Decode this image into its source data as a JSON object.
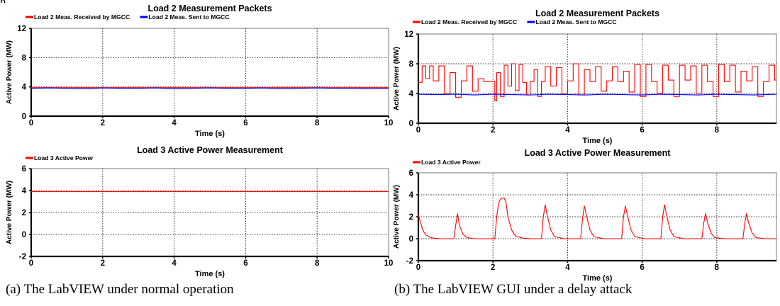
{
  "captions": {
    "a": "(a) The LabVIEW under normal operation",
    "b": "(b) The LabVIEW GUI under a delay attack"
  },
  "colors": {
    "received": "#ff0000",
    "sent": "#0000ff",
    "grid": "#444444"
  },
  "chart_data": [
    {
      "id": "a1",
      "type": "line",
      "title": "Load 2 Measurement Packets",
      "xlabel": "Time (s)",
      "ylabel": "Active Power (MW)",
      "xlim": [
        0,
        10
      ],
      "ylim": [
        0,
        12
      ],
      "xticks": [
        0,
        2,
        4,
        6,
        8,
        10
      ],
      "yticks": [
        0,
        4,
        8,
        12
      ],
      "grid": true,
      "legend": "top-left",
      "series": [
        {
          "name": "Load 2 Meas. Received by MGCC",
          "color": "#ff0000",
          "x": [
            0,
            10
          ],
          "y": [
            3.9,
            3.9
          ]
        },
        {
          "name": "Load 2 Meas. Sent to MGCC",
          "color": "#0000ff",
          "x": [
            0,
            0.5,
            1,
            1.5,
            2,
            2.5,
            3,
            3.5,
            4,
            4.5,
            5,
            5.5,
            6,
            6.5,
            7,
            7.5,
            8,
            8.5,
            9,
            9.5,
            10
          ],
          "y": [
            3.8,
            3.85,
            3.8,
            3.75,
            3.85,
            3.8,
            3.8,
            3.85,
            3.75,
            3.8,
            3.85,
            3.8,
            3.8,
            3.85,
            3.75,
            3.8,
            3.85,
            3.8,
            3.8,
            3.75,
            3.8
          ]
        }
      ]
    },
    {
      "id": "a2",
      "type": "line",
      "title": "Load 3 Active Power Measurement",
      "xlabel": "Time (s)",
      "ylabel": "Active Power (MW)",
      "xlim": [
        0,
        10
      ],
      "ylim": [
        -2,
        6
      ],
      "xticks": [
        0,
        2,
        4,
        6,
        8,
        10
      ],
      "yticks": [
        -2,
        0,
        2,
        4,
        6
      ],
      "grid": true,
      "legend": "top-left",
      "series": [
        {
          "name": "Load 3 Active Power",
          "color": "#ff0000",
          "x": [
            0,
            10
          ],
          "y": [
            3.9,
            3.9
          ]
        }
      ]
    },
    {
      "id": "b1",
      "type": "line",
      "title": "Load 2 Measurement Packets",
      "xlabel": "Time (s)",
      "ylabel": "Active Power (MW)",
      "xlim": [
        0,
        9.6
      ],
      "ylim": [
        0,
        12
      ],
      "xticks": [
        0,
        2,
        4,
        6,
        8
      ],
      "yticks": [
        0,
        4,
        8,
        12
      ],
      "grid": true,
      "legend": "top-left",
      "series": [
        {
          "name": "Load 2 Meas. Received by MGCC",
          "color": "#ff0000",
          "x": [
            0.0,
            0.1,
            0.1,
            0.2,
            0.2,
            0.3,
            0.3,
            0.4,
            0.4,
            0.55,
            0.55,
            0.7,
            0.7,
            0.85,
            0.85,
            1.0,
            1.0,
            1.15,
            1.15,
            1.3,
            1.3,
            1.45,
            1.45,
            1.6,
            1.6,
            1.75,
            1.75,
            1.9,
            1.9,
            2.05,
            2.05,
            2.1,
            2.1,
            2.2,
            2.2,
            2.3,
            2.3,
            2.4,
            2.4,
            2.5,
            2.5,
            2.6,
            2.6,
            2.7,
            2.7,
            2.8,
            2.8,
            2.9,
            2.9,
            3.0,
            3.0,
            3.1,
            3.1,
            3.2,
            3.2,
            3.3,
            3.3,
            3.4,
            3.4,
            3.55,
            3.55,
            3.7,
            3.7,
            3.85,
            3.85,
            4.0,
            4.0,
            4.15,
            4.15,
            4.3,
            4.3,
            4.45,
            4.45,
            4.6,
            4.6,
            4.75,
            4.75,
            4.9,
            4.9,
            5.05,
            5.05,
            5.2,
            5.2,
            5.35,
            5.35,
            5.5,
            5.5,
            5.65,
            5.65,
            5.8,
            5.8,
            5.95,
            5.95,
            6.1,
            6.1,
            6.25,
            6.25,
            6.4,
            6.4,
            6.55,
            6.55,
            6.7,
            6.7,
            6.85,
            6.85,
            7.0,
            7.0,
            7.15,
            7.15,
            7.3,
            7.3,
            7.45,
            7.45,
            7.6,
            7.6,
            7.75,
            7.75,
            7.9,
            7.9,
            8.05,
            8.05,
            8.2,
            8.2,
            8.35,
            8.35,
            8.5,
            8.5,
            8.65,
            8.65,
            8.8,
            8.8,
            8.95,
            8.95,
            9.1,
            9.1,
            9.25,
            9.25,
            9.4,
            9.4,
            9.55,
            9.55,
            9.6
          ],
          "y": [
            5.5,
            5.5,
            7.7,
            7.7,
            6.0,
            6.0,
            7.7,
            7.7,
            5.7,
            5.7,
            7.7,
            7.7,
            4.0,
            4.0,
            6.8,
            6.8,
            3.5,
            3.5,
            5.7,
            5.7,
            7.7,
            7.7,
            4.3,
            4.3,
            6.0,
            6.0,
            5.6,
            5.6,
            5.6,
            5.6,
            3.0,
            3.0,
            6.8,
            6.8,
            3.6,
            3.6,
            7.8,
            7.8,
            5.0,
            5.0,
            8.0,
            8.0,
            4.4,
            4.4,
            7.9,
            7.9,
            5.5,
            5.5,
            3.8,
            3.8,
            5.6,
            5.6,
            7.2,
            7.2,
            3.6,
            3.6,
            5.6,
            5.6,
            7.6,
            7.6,
            5.0,
            5.0,
            7.5,
            7.5,
            4.0,
            4.0,
            5.7,
            5.7,
            8.0,
            8.0,
            3.8,
            3.8,
            7.2,
            7.2,
            5.6,
            5.6,
            7.6,
            7.6,
            4.3,
            4.3,
            5.7,
            5.7,
            7.6,
            7.6,
            5.6,
            5.6,
            7.0,
            7.0,
            4.2,
            4.2,
            7.9,
            7.9,
            3.6,
            3.6,
            7.9,
            7.9,
            5.6,
            5.6,
            4.0,
            4.0,
            7.8,
            7.8,
            5.8,
            5.8,
            3.6,
            3.6,
            7.8,
            7.8,
            5.8,
            5.8,
            7.7,
            7.7,
            4.0,
            4.0,
            7.8,
            7.8,
            5.6,
            5.6,
            3.6,
            3.6,
            7.9,
            7.9,
            5.6,
            5.6,
            7.8,
            7.8,
            4.2,
            4.2,
            7.0,
            7.0,
            5.7,
            5.7,
            7.6,
            7.6,
            3.6,
            3.6,
            5.6,
            5.6,
            7.8,
            7.8,
            5.8,
            5.8
          ]
        },
        {
          "name": "Load 2 Meas. Sent to MGCC",
          "color": "#0000ff",
          "x": [
            0,
            0.5,
            1,
            1.5,
            2,
            2.5,
            3,
            3.5,
            4,
            4.5,
            5,
            5.5,
            6,
            6.5,
            7,
            7.5,
            8,
            8.5,
            9,
            9.6
          ],
          "y": [
            3.9,
            3.85,
            3.9,
            3.8,
            3.9,
            3.85,
            3.8,
            3.9,
            3.85,
            3.8,
            3.9,
            3.85,
            3.8,
            3.9,
            3.85,
            3.8,
            3.9,
            3.85,
            3.8,
            3.9
          ]
        }
      ]
    },
    {
      "id": "b2",
      "type": "line",
      "title": "Load 3 Active Power Measurement",
      "xlabel": "Time (s)",
      "ylabel": "Active Power (MW)",
      "xlim": [
        0,
        9.6
      ],
      "ylim": [
        -2,
        6
      ],
      "xticks": [
        0,
        2,
        4,
        6,
        8
      ],
      "yticks": [
        -2,
        0,
        2,
        4,
        6
      ],
      "grid": true,
      "legend": "top-left",
      "series": [
        {
          "name": "Load 3 Active Power",
          "color": "#ff0000",
          "x": [
            0,
            0.05,
            0.1,
            0.15,
            0.2,
            0.3,
            0.4,
            0.6,
            0.95,
            1.0,
            1.05,
            1.1,
            1.2,
            1.3,
            1.5,
            2.05,
            2.1,
            2.15,
            2.2,
            2.25,
            2.3,
            2.35,
            2.4,
            2.5,
            2.6,
            2.8,
            3.0,
            3.3,
            3.35,
            3.4,
            3.45,
            3.55,
            3.65,
            3.9,
            4.35,
            4.4,
            4.45,
            4.5,
            4.6,
            4.7,
            4.95,
            5.45,
            5.5,
            5.55,
            5.6,
            5.7,
            5.8,
            6.05,
            6.5,
            6.55,
            6.6,
            6.65,
            6.75,
            6.85,
            7.1,
            7.6,
            7.65,
            7.7,
            7.75,
            7.85,
            7.95,
            8.2,
            8.7,
            8.75,
            8.8,
            8.85,
            8.95,
            9.05,
            9.3,
            9.6
          ],
          "y": [
            2.2,
            1.6,
            1.0,
            0.6,
            0.35,
            0.15,
            0.05,
            0.0,
            0.0,
            1.2,
            2.3,
            1.2,
            0.4,
            0.1,
            0.0,
            0.0,
            2.0,
            3.2,
            3.6,
            3.7,
            3.7,
            3.3,
            2.0,
            0.8,
            0.25,
            0.05,
            0.0,
            0.0,
            2.0,
            3.1,
            2.2,
            0.8,
            0.2,
            0.0,
            0.0,
            1.8,
            3.0,
            2.2,
            0.8,
            0.2,
            0.0,
            0.0,
            2.0,
            3.0,
            2.2,
            0.8,
            0.2,
            0.0,
            0.0,
            2.0,
            3.1,
            2.2,
            0.8,
            0.2,
            0.0,
            0.0,
            1.4,
            2.3,
            1.5,
            0.5,
            0.1,
            0.0,
            0.0,
            1.4,
            2.3,
            1.5,
            0.5,
            0.1,
            0.0,
            0.0
          ]
        }
      ]
    }
  ]
}
